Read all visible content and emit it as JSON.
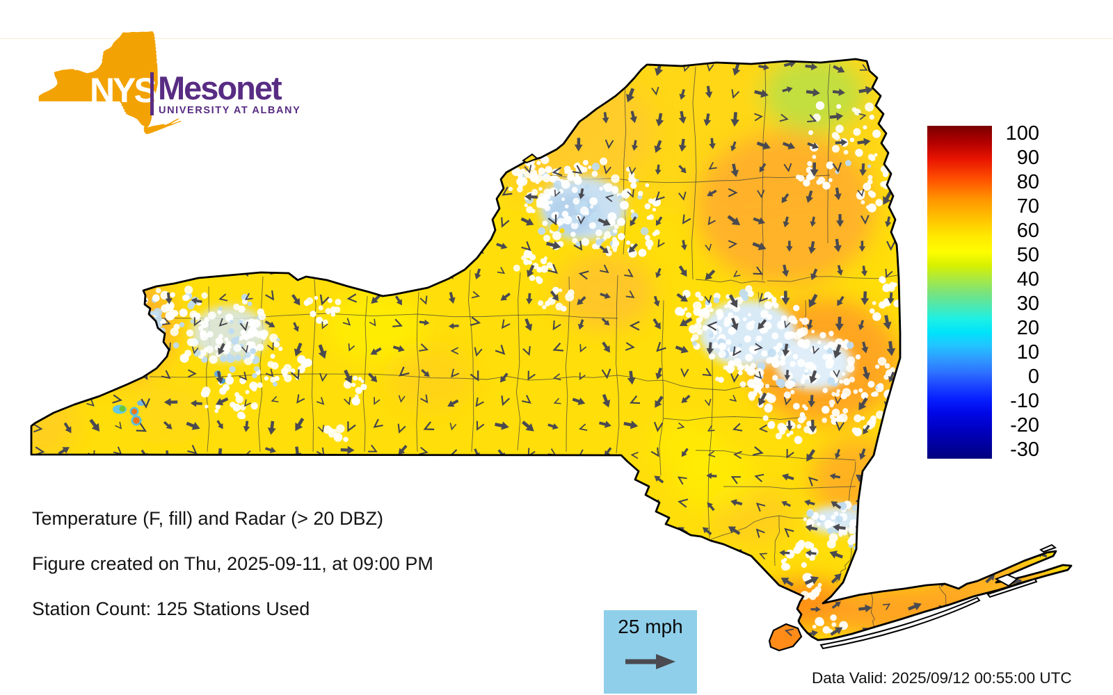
{
  "logo": {
    "org_abbr": "NYS",
    "org_name": "Mesonet",
    "subtitle": "UNIVERSITY AT ALBANY",
    "orange": "#F2A202",
    "purple": "#582C83"
  },
  "captions": {
    "line1": "Temperature (F, fill) and Radar (> 20 DBZ)",
    "line2": "Figure created on Thu, 2025-09-11, at 09:00 PM",
    "line3": "Station Count: 125 Stations Used"
  },
  "wind_legend": {
    "label": "25 mph",
    "box_color": "#8FCFEA",
    "arrow_color": "#4A4A50"
  },
  "footer": {
    "data_valid": "Data Valid: 2025/09/12 00:55:00 UTC"
  },
  "colorbar": {
    "ticks": [
      100,
      90,
      80,
      70,
      60,
      50,
      40,
      30,
      20,
      10,
      0,
      -10,
      -20,
      -30
    ],
    "value_range": [
      -30,
      100
    ],
    "top_color": "#7A0000",
    "bottom_color": "#00007E"
  },
  "map": {
    "region": "New York State",
    "fill_variable": "Temperature (F)",
    "overlay_variable": "Radar > 20 DBZ",
    "station_count": 125,
    "base_fill_color": "#FFDE0A",
    "warm_color": "#FF8C14",
    "cool_patch_color": "#AEE04E",
    "radar_white": "#FFFFFF",
    "radar_blue": "#BFDCF1",
    "state_border_color": "#000000",
    "county_line_color": "#3B3B3B",
    "wind_arrow_color": "#4A4A50"
  }
}
